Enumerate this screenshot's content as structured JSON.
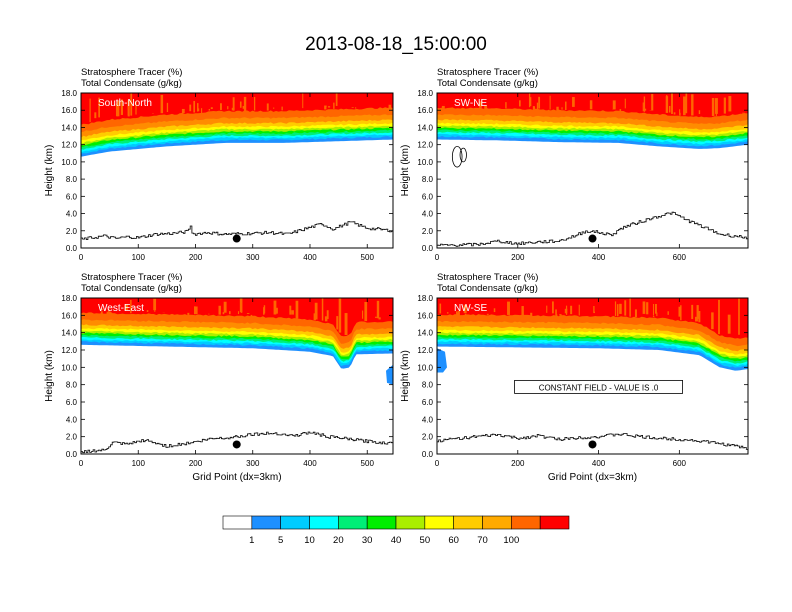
{
  "title": "2013-08-18_15:00:00",
  "chart_data": [
    {
      "type": "contour",
      "panel": "South-North",
      "field_label": "Stratosphere Tracer",
      "field_units": "(%)",
      "overlay_label": "Total Condensate",
      "overlay_units": "(g/kg)",
      "xlabel": "",
      "ylabel": "Height (km)",
      "xlim": [
        0,
        545
      ],
      "ylim": [
        0,
        18
      ],
      "xticks": [
        "0",
        "100",
        "200",
        "300",
        "400",
        "500"
      ],
      "xtick_values": [
        0,
        100,
        200,
        300,
        400,
        500
      ],
      "yticks": [
        "0.0",
        "2.0",
        "4.0",
        "6.0",
        "8.0",
        "10.0",
        "12.0",
        "14.0",
        "16.0",
        "18.0"
      ],
      "ytick_values": [
        0,
        2,
        4,
        6,
        8,
        10,
        12,
        14,
        16,
        18
      ],
      "marker": {
        "x": 272,
        "y": 1.1
      },
      "band_bottom_km": [
        [
          0,
          10.6
        ],
        [
          50,
          11.2
        ],
        [
          150,
          11.8
        ],
        [
          250,
          12.2
        ],
        [
          350,
          12.2
        ],
        [
          450,
          12.4
        ],
        [
          545,
          12.6
        ]
      ],
      "terrain_km": [
        [
          0,
          1.0
        ],
        [
          20,
          1.2
        ],
        [
          40,
          1.4
        ],
        [
          60,
          1.1
        ],
        [
          80,
          1.3
        ],
        [
          100,
          1.2
        ],
        [
          130,
          1.6
        ],
        [
          160,
          1.7
        ],
        [
          185,
          1.9
        ],
        [
          190,
          2.6
        ],
        [
          195,
          1.6
        ],
        [
          220,
          1.8
        ],
        [
          250,
          1.6
        ],
        [
          300,
          1.7
        ],
        [
          330,
          1.8
        ],
        [
          360,
          1.6
        ],
        [
          390,
          2.2
        ],
        [
          420,
          2.8
        ],
        [
          440,
          2.2
        ],
        [
          470,
          3.0
        ],
        [
          500,
          2.3
        ],
        [
          530,
          2.1
        ],
        [
          545,
          2.0
        ]
      ]
    },
    {
      "type": "contour",
      "panel": "SW-NE",
      "field_label": "Stratosphere Tracer",
      "field_units": "(%)",
      "overlay_label": "Total Condensate",
      "overlay_units": "(g/kg)",
      "xlabel": "",
      "ylabel": "Height (km)",
      "xlim": [
        0,
        770
      ],
      "ylim": [
        0,
        18
      ],
      "xticks": [
        "0",
        "200",
        "400",
        "600"
      ],
      "xtick_values": [
        0,
        200,
        400,
        600
      ],
      "yticks": [
        "0.0",
        "2.0",
        "4.0",
        "6.0",
        "8.0",
        "10.0",
        "12.0",
        "14.0",
        "16.0",
        "18.0"
      ],
      "ytick_values": [
        0,
        2,
        4,
        6,
        8,
        10,
        12,
        14,
        16,
        18
      ],
      "marker": {
        "x": 385,
        "y": 1.1
      },
      "band_bottom_km": [
        [
          0,
          12.6
        ],
        [
          150,
          12.5
        ],
        [
          300,
          12.3
        ],
        [
          450,
          12.2
        ],
        [
          550,
          11.8
        ],
        [
          650,
          11.5
        ],
        [
          700,
          11.6
        ],
        [
          770,
          12.0
        ]
      ],
      "terrain_km": [
        [
          0,
          0.3
        ],
        [
          100,
          0.4
        ],
        [
          150,
          0.8
        ],
        [
          200,
          0.5
        ],
        [
          250,
          0.7
        ],
        [
          300,
          0.8
        ],
        [
          340,
          1.4
        ],
        [
          370,
          2.0
        ],
        [
          400,
          1.8
        ],
        [
          430,
          1.5
        ],
        [
          460,
          2.4
        ],
        [
          500,
          3.0
        ],
        [
          540,
          3.6
        ],
        [
          580,
          4.1
        ],
        [
          620,
          3.2
        ],
        [
          660,
          2.4
        ],
        [
          700,
          1.6
        ],
        [
          770,
          1.2
        ]
      ],
      "condensate_contours": [
        {
          "cx": 50,
          "cy": 10.6,
          "rx": 12,
          "ry": 1.2
        },
        {
          "cx": 65,
          "cy": 10.8,
          "rx": 8,
          "ry": 0.8
        }
      ]
    },
    {
      "type": "contour",
      "panel": "West-East",
      "field_label": "Stratosphere Tracer",
      "field_units": "(%)",
      "overlay_label": "Total Condensate",
      "overlay_units": "(g/kg)",
      "xlabel": "Grid Point (dx=3km)",
      "ylabel": "Height (km)",
      "xlim": [
        0,
        545
      ],
      "ylim": [
        0,
        18
      ],
      "xticks": [
        "0",
        "100",
        "200",
        "300",
        "400",
        "500"
      ],
      "xtick_values": [
        0,
        100,
        200,
        300,
        400,
        500
      ],
      "yticks": [
        "0.0",
        "2.0",
        "4.0",
        "6.0",
        "8.0",
        "10.0",
        "12.0",
        "14.0",
        "16.0",
        "18.0"
      ],
      "ytick_values": [
        0,
        2,
        4,
        6,
        8,
        10,
        12,
        14,
        16,
        18
      ],
      "marker": {
        "x": 272,
        "y": 1.1
      },
      "band_bottom_km": [
        [
          0,
          12.6
        ],
        [
          150,
          12.4
        ],
        [
          300,
          12.2
        ],
        [
          400,
          11.8
        ],
        [
          440,
          11.3
        ],
        [
          455,
          9.8
        ],
        [
          470,
          10.0
        ],
        [
          480,
          11.5
        ],
        [
          545,
          11.6
        ]
      ],
      "terrain_km": [
        [
          0,
          0.3
        ],
        [
          40,
          0.4
        ],
        [
          55,
          1.3
        ],
        [
          80,
          1.1
        ],
        [
          110,
          1.6
        ],
        [
          150,
          0.9
        ],
        [
          200,
          1.4
        ],
        [
          230,
          1.8
        ],
        [
          260,
          1.9
        ],
        [
          300,
          2.3
        ],
        [
          340,
          2.4
        ],
        [
          370,
          2.1
        ],
        [
          400,
          2.5
        ],
        [
          430,
          2.0
        ],
        [
          470,
          1.7
        ],
        [
          510,
          1.4
        ],
        [
          545,
          1.2
        ]
      ]
    },
    {
      "type": "contour",
      "panel": "NW-SE",
      "field_label": "Stratosphere Tracer",
      "field_units": "(%)",
      "overlay_label": "Total Condensate",
      "overlay_units": "(g/kg)",
      "xlabel": "Grid Point (dx=3km)",
      "ylabel": "Height (km)",
      "xlim": [
        0,
        770
      ],
      "ylim": [
        0,
        18
      ],
      "xticks": [
        "0",
        "200",
        "400",
        "600"
      ],
      "xtick_values": [
        0,
        200,
        400,
        600
      ],
      "yticks": [
        "0.0",
        "2.0",
        "4.0",
        "6.0",
        "8.0",
        "10.0",
        "12.0",
        "14.0",
        "16.0",
        "18.0"
      ],
      "ytick_values": [
        0,
        2,
        4,
        6,
        8,
        10,
        12,
        14,
        16,
        18
      ],
      "marker": {
        "x": 385,
        "y": 1.1
      },
      "message": "CONSTANT FIELD - VALUE IS .0",
      "band_bottom_km": [
        [
          0,
          12.4
        ],
        [
          200,
          12.3
        ],
        [
          400,
          12.2
        ],
        [
          550,
          12.0
        ],
        [
          650,
          11.4
        ],
        [
          700,
          10.0
        ],
        [
          740,
          9.6
        ],
        [
          770,
          9.8
        ]
      ],
      "terrain_km": [
        [
          0,
          1.5
        ],
        [
          50,
          1.8
        ],
        [
          100,
          2.0
        ],
        [
          150,
          2.2
        ],
        [
          200,
          1.8
        ],
        [
          250,
          2.1
        ],
        [
          300,
          1.7
        ],
        [
          350,
          1.9
        ],
        [
          400,
          2.0
        ],
        [
          450,
          2.3
        ],
        [
          500,
          2.0
        ],
        [
          550,
          1.8
        ],
        [
          600,
          1.7
        ],
        [
          650,
          1.5
        ],
        [
          700,
          1.2
        ],
        [
          740,
          0.9
        ],
        [
          770,
          0.6
        ]
      ]
    }
  ],
  "colorbar": {
    "labels": [
      "1",
      "5",
      "10",
      "20",
      "30",
      "40",
      "50",
      "60",
      "70",
      "100"
    ],
    "colors": [
      "#ffffff",
      "#1e90ff",
      "#00ccff",
      "#00ffff",
      "#00ee77",
      "#00ee00",
      "#aaee00",
      "#ffff00",
      "#ffcc00",
      "#ffaa00",
      "#ff6600",
      "#ff0000"
    ]
  }
}
